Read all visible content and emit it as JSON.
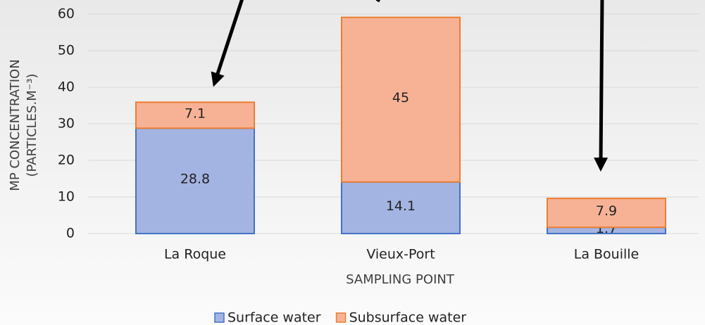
{
  "chart_data": {
    "type": "stacked_bar",
    "categories": [
      "La Roque",
      "Vieux-Port",
      "La Bouille"
    ],
    "series": [
      {
        "name": "Surface water",
        "color": "#4472c4",
        "fill": "#a4b4e2",
        "values": [
          28.8,
          14.1,
          1.7
        ]
      },
      {
        "name": "Subsurface water",
        "color": "#ed7d31",
        "fill": "#f7b295",
        "values": [
          7.1,
          45,
          7.9
        ]
      }
    ],
    "ylim": [
      0,
      60
    ],
    "yticks": [
      0,
      10,
      20,
      30,
      40,
      50,
      60
    ],
    "grid": true,
    "xlabel": "SAMPLING POINT",
    "ylabel": [
      "MP CONCENTRATION",
      "(PARTICLES.M⁻³)"
    ],
    "legend": "bottom"
  }
}
